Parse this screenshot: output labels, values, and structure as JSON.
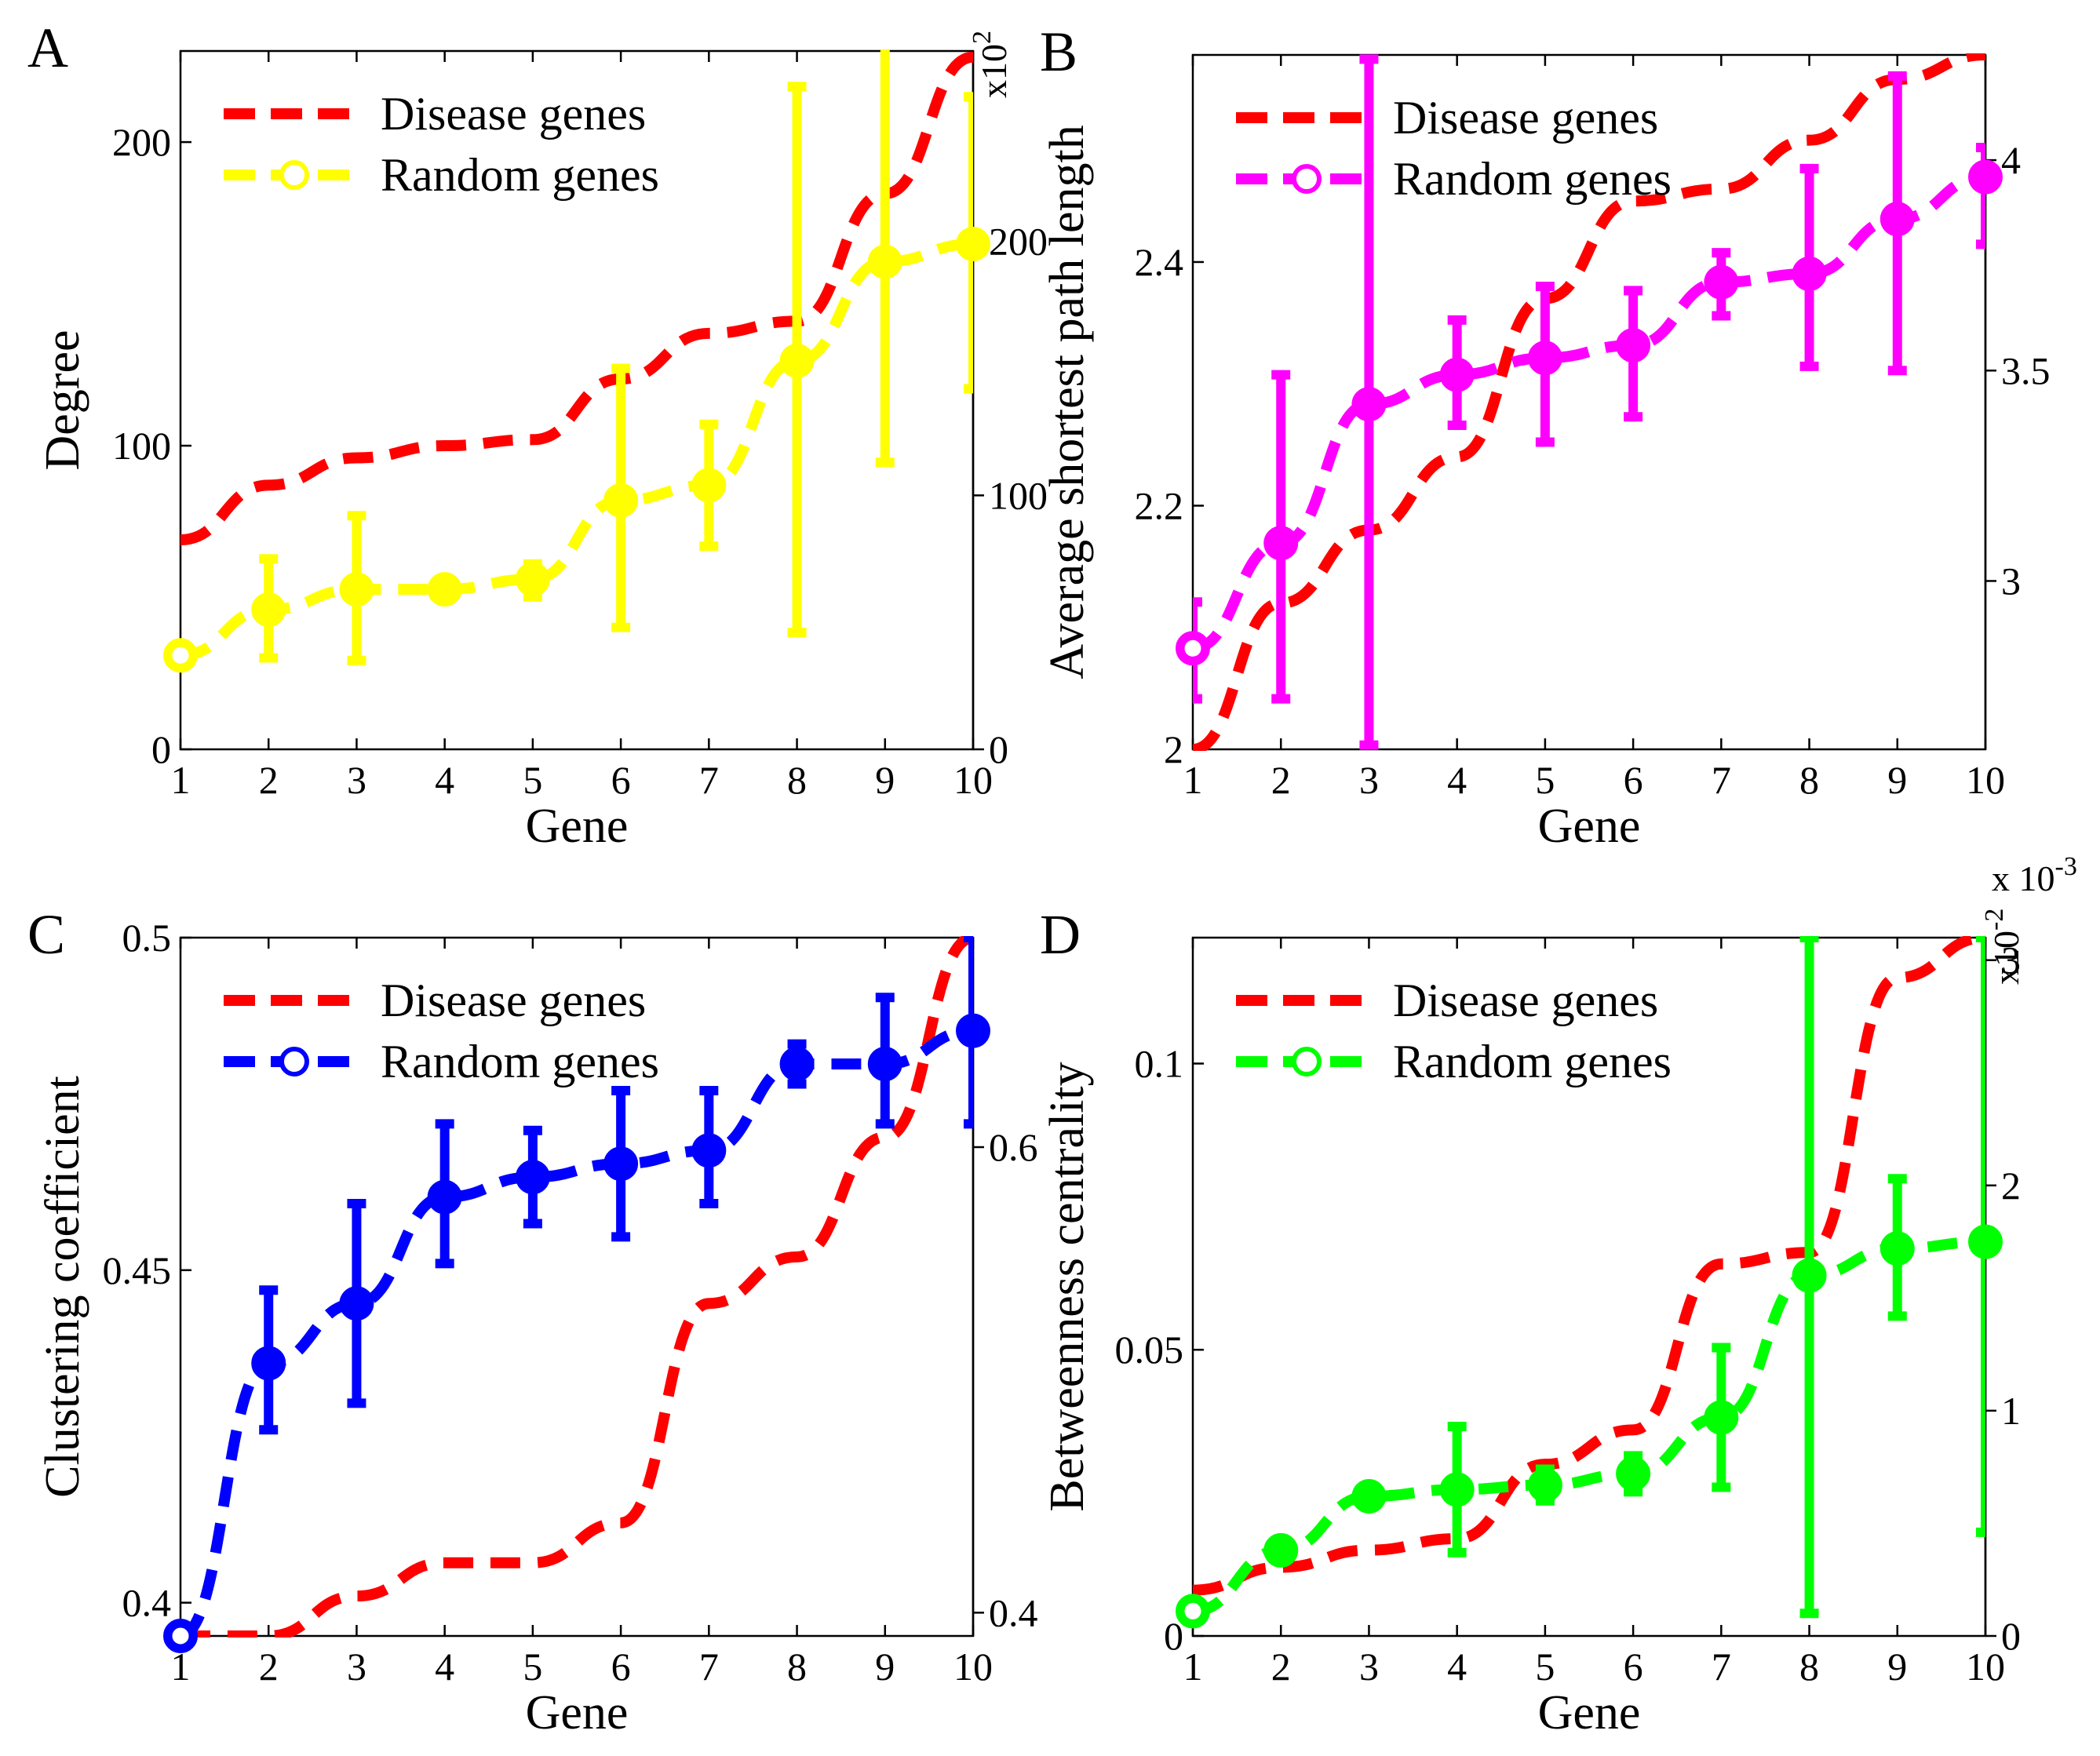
{
  "chart_data": [
    {
      "id": "A",
      "type": "line",
      "panel_label": "A",
      "xlabel": "Gene",
      "ylabel": "Degree",
      "xlim": [
        1,
        10
      ],
      "ylim": [
        0,
        230
      ],
      "x_ticks": [
        1,
        2,
        3,
        4,
        5,
        6,
        7,
        8,
        9,
        10
      ],
      "y_ticks": [
        0,
        100,
        200
      ],
      "y2lim": [
        0,
        275
      ],
      "y2_ticks": [
        0,
        100,
        200
      ],
      "y2_multiplier": "x10",
      "y2_multiplier_exp": "2",
      "y2_multiplier_orient": "vertical",
      "legend": [
        "Disease genes",
        "Random genes"
      ],
      "series": [
        {
          "name": "Disease genes",
          "axis": "left",
          "color": "#ff0000",
          "marker": "none",
          "x": [
            1,
            2,
            3,
            4,
            5,
            6,
            7,
            8,
            9,
            10
          ],
          "values": [
            69,
            87,
            96,
            100,
            102,
            122,
            137,
            141,
            183,
            228
          ]
        },
        {
          "name": "Random genes",
          "axis": "right",
          "color": "#ffff00",
          "marker": "circle",
          "x": [
            1,
            2,
            3,
            4,
            5,
            6,
            7,
            8,
            9,
            10
          ],
          "values": [
            37,
            55,
            63,
            63,
            67,
            98,
            104,
            153,
            192,
            199
          ],
          "error_low": [
            37,
            36,
            35,
            60,
            60,
            48,
            80,
            46,
            113,
            142
          ],
          "error_high": [
            37,
            75,
            92,
            66,
            73,
            150,
            128,
            261,
            278,
            257
          ]
        }
      ]
    },
    {
      "id": "B",
      "type": "line",
      "panel_label": "B",
      "xlabel": "Gene",
      "ylabel": "Average shortest path length",
      "xlim": [
        1,
        10
      ],
      "ylim": [
        2.0,
        2.57
      ],
      "x_ticks": [
        1,
        2,
        3,
        4,
        5,
        6,
        7,
        8,
        9,
        10
      ],
      "y_ticks": [
        2,
        2.2,
        2.4
      ],
      "y2lim": [
        2.6,
        4.25
      ],
      "y2_ticks": [
        3,
        3.5,
        4
      ],
      "legend": [
        "Disease genes",
        "Random genes"
      ],
      "series": [
        {
          "name": "Disease genes",
          "axis": "left",
          "color": "#ff0000",
          "marker": "none",
          "x": [
            1,
            2,
            3,
            4,
            5,
            6,
            7,
            8,
            9,
            10
          ],
          "values": [
            2.0,
            2.12,
            2.18,
            2.24,
            2.37,
            2.45,
            2.46,
            2.5,
            2.55,
            2.57
          ]
        },
        {
          "name": "Random genes",
          "axis": "right",
          "color": "#ff00ff",
          "marker": "circle",
          "x": [
            1,
            2,
            3,
            4,
            5,
            6,
            7,
            8,
            9,
            10
          ],
          "values": [
            2.84,
            3.09,
            3.42,
            3.49,
            3.53,
            3.56,
            3.71,
            3.73,
            3.86,
            3.96
          ],
          "error_low": [
            2.72,
            2.72,
            2.61,
            3.37,
            3.33,
            3.39,
            3.63,
            3.51,
            3.5,
            3.8
          ],
          "error_high": [
            2.95,
            3.49,
            4.24,
            3.62,
            3.7,
            3.69,
            3.78,
            3.98,
            4.2,
            4.03
          ]
        }
      ]
    },
    {
      "id": "C",
      "type": "line",
      "panel_label": "C",
      "xlabel": "Gene",
      "ylabel": "Clustering coefficient",
      "xlim": [
        1,
        10
      ],
      "ylim": [
        0.395,
        0.5
      ],
      "x_ticks": [
        1,
        2,
        3,
        4,
        5,
        6,
        7,
        8,
        9,
        10
      ],
      "y_ticks": [
        0.4,
        0.45,
        0.5
      ],
      "y2lim": [
        0.39,
        0.69
      ],
      "y2_ticks": [
        0.4,
        0.6
      ],
      "legend": [
        "Disease genes",
        "Random genes"
      ],
      "series": [
        {
          "name": "Disease genes",
          "axis": "left",
          "color": "#ff0000",
          "marker": "none",
          "x": [
            1,
            2,
            3,
            4,
            5,
            6,
            7,
            8,
            9,
            10
          ],
          "values": [
            0.395,
            0.395,
            0.401,
            0.406,
            0.406,
            0.412,
            0.445,
            0.452,
            0.47,
            0.5
          ]
        },
        {
          "name": "Random genes",
          "axis": "left",
          "color": "#0000ff",
          "marker": "circle",
          "x": [
            1,
            2,
            3,
            4,
            5,
            6,
            7,
            8,
            9,
            10
          ],
          "values": [
            0.395,
            0.436,
            0.445,
            0.461,
            0.464,
            0.466,
            0.468,
            0.481,
            0.481,
            0.486
          ],
          "error_low": [
            0.395,
            0.426,
            0.43,
            0.451,
            0.457,
            0.455,
            0.46,
            0.478,
            0.472,
            0.472
          ],
          "error_high": [
            0.395,
            0.447,
            0.46,
            0.472,
            0.471,
            0.477,
            0.477,
            0.484,
            0.491,
            0.5
          ]
        }
      ]
    },
    {
      "id": "D",
      "type": "line",
      "panel_label": "D",
      "xlabel": "Gene",
      "ylabel": "Betweenness centrality",
      "xlim": [
        1,
        10
      ],
      "ylim": [
        0,
        0.122
      ],
      "x_ticks": [
        1,
        2,
        3,
        4,
        5,
        6,
        7,
        8,
        9,
        10
      ],
      "y_ticks": [
        0,
        0.05,
        0.1
      ],
      "y_top_multiplier": "x 10",
      "y_top_multiplier_exp": "-3",
      "y2lim": [
        0,
        3.1
      ],
      "y2_ticks": [
        0,
        1,
        2,
        3
      ],
      "y2_multiplier": "x10",
      "y2_multiplier_exp": "-2",
      "y2_multiplier_orient": "vertical",
      "legend": [
        "Disease genes",
        "Random genes"
      ],
      "series": [
        {
          "name": "Disease genes",
          "axis": "left",
          "color": "#ff0000",
          "marker": "none",
          "x": [
            1,
            2,
            3,
            4,
            5,
            6,
            7,
            8,
            9,
            10
          ],
          "values": [
            0.008,
            0.012,
            0.015,
            0.017,
            0.03,
            0.036,
            0.065,
            0.067,
            0.115,
            0.122
          ]
        },
        {
          "name": "Random genes",
          "axis": "right",
          "color": "#00ff00",
          "marker": "circle",
          "x": [
            1,
            2,
            3,
            4,
            5,
            6,
            7,
            8,
            9,
            10
          ],
          "values": [
            0.11,
            0.38,
            0.62,
            0.65,
            0.67,
            0.72,
            0.97,
            1.6,
            1.72,
            1.75
          ],
          "error_low": [
            0.11,
            0.38,
            0.62,
            0.37,
            0.6,
            0.64,
            0.66,
            0.1,
            1.42,
            0.46
          ],
          "error_high": [
            0.11,
            0.38,
            0.62,
            0.93,
            0.74,
            0.8,
            1.28,
            3.1,
            2.03,
            3.1
          ]
        }
      ]
    }
  ]
}
